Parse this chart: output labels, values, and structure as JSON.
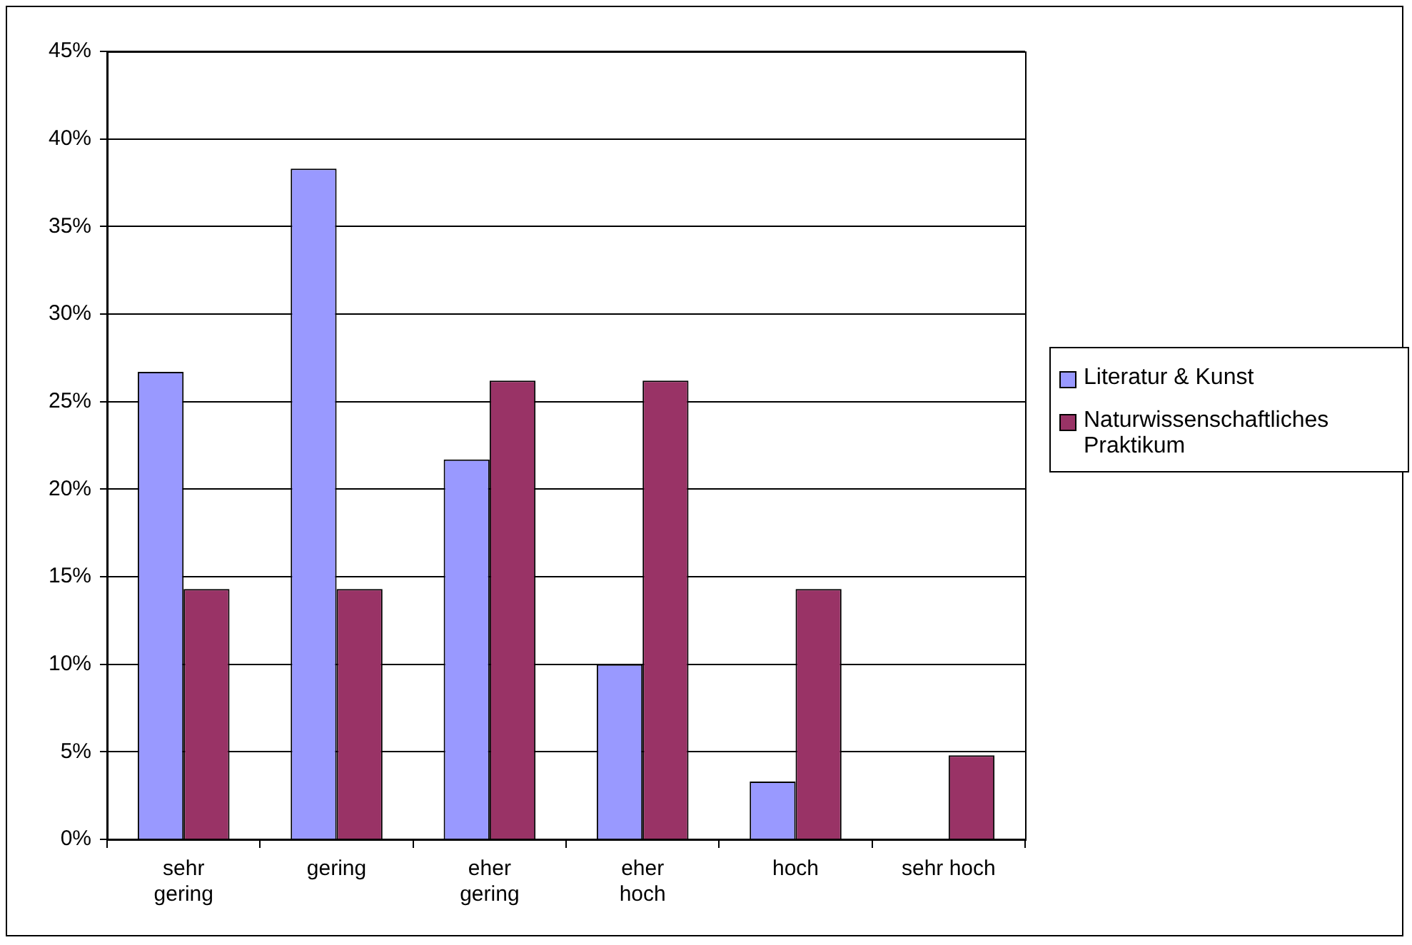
{
  "chart_data": {
    "type": "bar",
    "categories": [
      "sehr gering",
      "gering",
      "eher gering",
      "eher hoch",
      "hoch",
      "sehr hoch"
    ],
    "series": [
      {
        "name": "Literatur & Kunst",
        "color": "#9999ff",
        "values": [
          26.7,
          38.3,
          21.7,
          10,
          3.3,
          0
        ]
      },
      {
        "name": "Naturwissenschaftliches Praktikum",
        "color": "#993366",
        "values": [
          14.3,
          14.3,
          26.2,
          26.2,
          14.3,
          4.8
        ]
      }
    ],
    "ylim": [
      0,
      45
    ],
    "yticks": [
      {
        "value": 0,
        "label": "0%"
      },
      {
        "value": 5,
        "label": "5%"
      },
      {
        "value": 10,
        "label": "10%"
      },
      {
        "value": 15,
        "label": "15%"
      },
      {
        "value": 20,
        "label": "20%"
      },
      {
        "value": 25,
        "label": "25%"
      },
      {
        "value": 30,
        "label": "30%"
      },
      {
        "value": 35,
        "label": "35%"
      },
      {
        "value": 40,
        "label": "40%"
      },
      {
        "value": 45,
        "label": "45%"
      }
    ],
    "grid": "y",
    "legend": "right"
  }
}
